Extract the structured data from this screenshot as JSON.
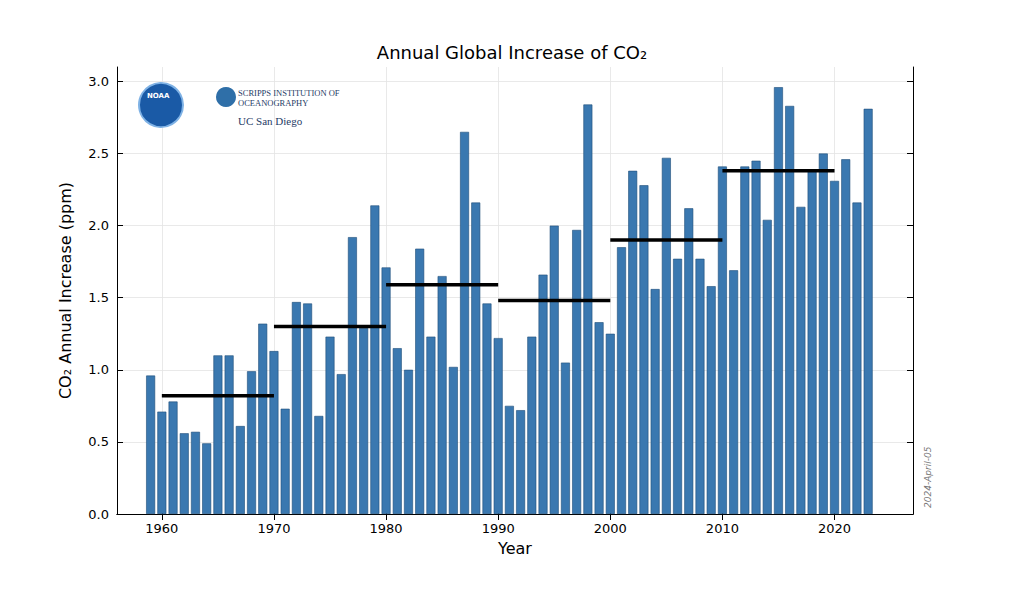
{
  "chart_data": {
    "type": "bar",
    "title": "Annual Global Increase of CO₂",
    "x_label": "Year",
    "y_label": "CO₂ Annual Increase (ppm)",
    "x": [
      1959,
      1960,
      1961,
      1962,
      1963,
      1964,
      1965,
      1966,
      1967,
      1968,
      1969,
      1970,
      1971,
      1972,
      1973,
      1974,
      1975,
      1976,
      1977,
      1978,
      1979,
      1980,
      1981,
      1982,
      1983,
      1984,
      1985,
      1986,
      1987,
      1988,
      1989,
      1990,
      1991,
      1992,
      1993,
      1994,
      1995,
      1996,
      1997,
      1998,
      1999,
      2000,
      2001,
      2002,
      2003,
      2004,
      2005,
      2006,
      2007,
      2008,
      2009,
      2010,
      2011,
      2012,
      2013,
      2014,
      2015,
      2016,
      2017,
      2018,
      2019,
      2020,
      2021,
      2022,
      2023
    ],
    "values": [
      0.96,
      0.71,
      0.78,
      0.56,
      0.57,
      0.49,
      1.1,
      1.1,
      0.61,
      0.99,
      1.32,
      1.13,
      0.73,
      1.47,
      1.46,
      0.68,
      1.23,
      0.97,
      1.92,
      1.29,
      2.14,
      1.71,
      1.15,
      1.0,
      1.84,
      1.23,
      1.65,
      1.02,
      2.65,
      2.16,
      1.46,
      1.22,
      0.75,
      0.72,
      1.23,
      1.66,
      2.0,
      1.05,
      1.97,
      2.84,
      1.33,
      1.25,
      1.85,
      2.38,
      2.28,
      1.56,
      2.47,
      1.77,
      2.12,
      1.77,
      1.58,
      2.41,
      1.69,
      2.41,
      2.45,
      2.04,
      2.96,
      2.83,
      2.13,
      2.38,
      2.5,
      2.31,
      2.46,
      2.16,
      2.81
    ],
    "color": "#3a78b0",
    "decade_means": [
      {
        "start": 1960,
        "end": 1970,
        "value": 0.82
      },
      {
        "start": 1970,
        "end": 1980,
        "value": 1.3
      },
      {
        "start": 1980,
        "end": 1990,
        "value": 1.59
      },
      {
        "start": 1990,
        "end": 2000,
        "value": 1.48
      },
      {
        "start": 2000,
        "end": 2010,
        "value": 1.9
      },
      {
        "start": 2010,
        "end": 2020,
        "value": 2.38
      }
    ],
    "decade_color": "#000000",
    "xlim": [
      1956,
      2027
    ],
    "xticks": [
      1960,
      1970,
      1980,
      1990,
      2000,
      2010,
      2020
    ],
    "ylim": [
      0,
      3.1
    ],
    "yticks": [
      {
        "value": 0,
        "label": "0.0"
      },
      {
        "value": 0.5,
        "label": "0.5"
      },
      {
        "value": 1,
        "label": "1.0"
      },
      {
        "value": 1.5,
        "label": "1.5"
      },
      {
        "value": 2,
        "label": "2.0"
      },
      {
        "value": 2.5,
        "label": "2.5"
      },
      {
        "value": 3,
        "label": "3.0"
      }
    ],
    "grid": true,
    "annotations": [
      "NOAA",
      "SCRIPPS INSTITUTION OF OCEANOGRAPHY",
      "UC San Diego",
      "2024-April-05"
    ]
  }
}
